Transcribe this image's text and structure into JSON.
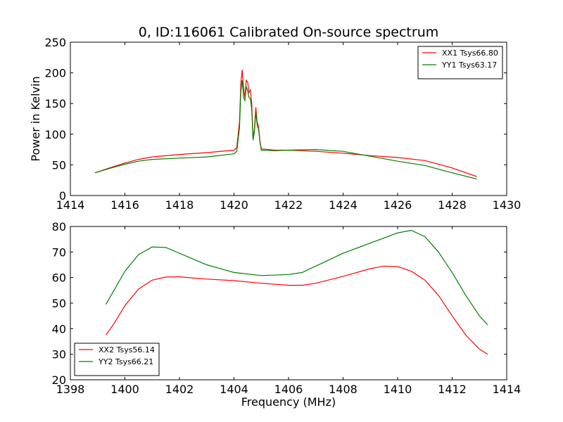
{
  "chart_data": [
    {
      "type": "line",
      "title": "0, ID:116061 Calibrated On-source spectrum",
      "xlabel": "",
      "ylabel": "Power in Kelvin",
      "xlim": [
        1414,
        1430
      ],
      "ylim": [
        0,
        250
      ],
      "xticks": [
        1414,
        1416,
        1418,
        1420,
        1422,
        1424,
        1426,
        1428,
        1430
      ],
      "yticks": [
        0,
        50,
        100,
        150,
        200,
        250
      ],
      "legend_position": "top-right",
      "grid": false,
      "series": [
        {
          "name": "XX1 Tsys66.80",
          "color": "#ff0000",
          "x": [
            1414.9,
            1415.5,
            1416.0,
            1416.5,
            1417.0,
            1418.0,
            1419.0,
            1420.0,
            1420.1,
            1420.2,
            1420.25,
            1420.3,
            1420.35,
            1420.4,
            1420.45,
            1420.5,
            1420.55,
            1420.6,
            1420.65,
            1420.7,
            1420.75,
            1420.8,
            1420.85,
            1420.9,
            1420.95,
            1421.0,
            1421.5,
            1422.0,
            1423.0,
            1424.0,
            1425.0,
            1426.0,
            1427.0,
            1428.0,
            1428.9
          ],
          "y": [
            37,
            46,
            53,
            59,
            63,
            67,
            70,
            74,
            78,
            120,
            182,
            205,
            175,
            160,
            188,
            185,
            168,
            172,
            150,
            92,
            110,
            144,
            120,
            112,
            90,
            76,
            74,
            74,
            72,
            69,
            65,
            62,
            57,
            45,
            31
          ]
        },
        {
          "name": "YY1 Tsys63.17",
          "color": "#008000",
          "x": [
            1414.9,
            1415.5,
            1416.0,
            1416.5,
            1417.0,
            1418.0,
            1419.0,
            1420.0,
            1420.1,
            1420.2,
            1420.25,
            1420.3,
            1420.35,
            1420.4,
            1420.45,
            1420.5,
            1420.55,
            1420.6,
            1420.65,
            1420.7,
            1420.75,
            1420.8,
            1420.85,
            1420.9,
            1420.95,
            1421.0,
            1421.5,
            1422.0,
            1423.0,
            1424.0,
            1425.0,
            1426.0,
            1427.0,
            1428.0,
            1428.9
          ],
          "y": [
            37,
            45,
            51,
            56,
            59,
            61,
            63,
            68,
            72,
            110,
            170,
            188,
            160,
            155,
            178,
            170,
            160,
            158,
            140,
            90,
            105,
            136,
            115,
            108,
            88,
            74,
            73,
            74,
            75,
            72,
            64,
            56,
            49,
            37,
            27
          ]
        }
      ]
    },
    {
      "type": "line",
      "title": "",
      "xlabel": "Frequency (MHz)",
      "ylabel": "",
      "xlim": [
        1398,
        1414
      ],
      "ylim": [
        20,
        80
      ],
      "xticks": [
        1398,
        1400,
        1402,
        1404,
        1406,
        1408,
        1410,
        1412,
        1414
      ],
      "yticks": [
        20,
        30,
        40,
        50,
        60,
        70,
        80
      ],
      "legend_position": "bottom-left",
      "grid": false,
      "series": [
        {
          "name": "XX2 Tsys56.14",
          "color": "#ff0000",
          "x": [
            1399.3,
            1399.6,
            1400.0,
            1400.5,
            1401.0,
            1401.5,
            1402.0,
            1403.0,
            1404.0,
            1405.0,
            1406.0,
            1406.5,
            1407.0,
            1408.0,
            1409.0,
            1409.5,
            1410.0,
            1410.5,
            1411.0,
            1411.5,
            1412.0,
            1412.5,
            1413.0,
            1413.3
          ],
          "y": [
            37.5,
            42,
            49,
            55.5,
            59,
            60.2,
            60.3,
            59.4,
            58.8,
            57.8,
            57,
            57,
            57.8,
            60.5,
            63.5,
            64.5,
            64.3,
            62.5,
            59,
            53,
            45,
            37.5,
            32,
            30
          ]
        },
        {
          "name": "YY2 Tsys66.21",
          "color": "#008000",
          "x": [
            1399.3,
            1399.6,
            1400.0,
            1400.5,
            1401.0,
            1401.5,
            1402.0,
            1403.0,
            1404.0,
            1405.0,
            1406.0,
            1406.5,
            1407.0,
            1408.0,
            1409.0,
            1409.5,
            1410.0,
            1410.5,
            1411.0,
            1411.5,
            1412.0,
            1412.5,
            1413.0,
            1413.3
          ],
          "y": [
            49.5,
            55,
            62.5,
            69,
            72,
            71.8,
            69.5,
            65,
            62,
            60.8,
            61.2,
            62,
            64.5,
            69.5,
            73.5,
            75.5,
            77.5,
            78.5,
            76,
            70,
            62,
            53,
            45,
            41.5
          ]
        }
      ]
    }
  ]
}
